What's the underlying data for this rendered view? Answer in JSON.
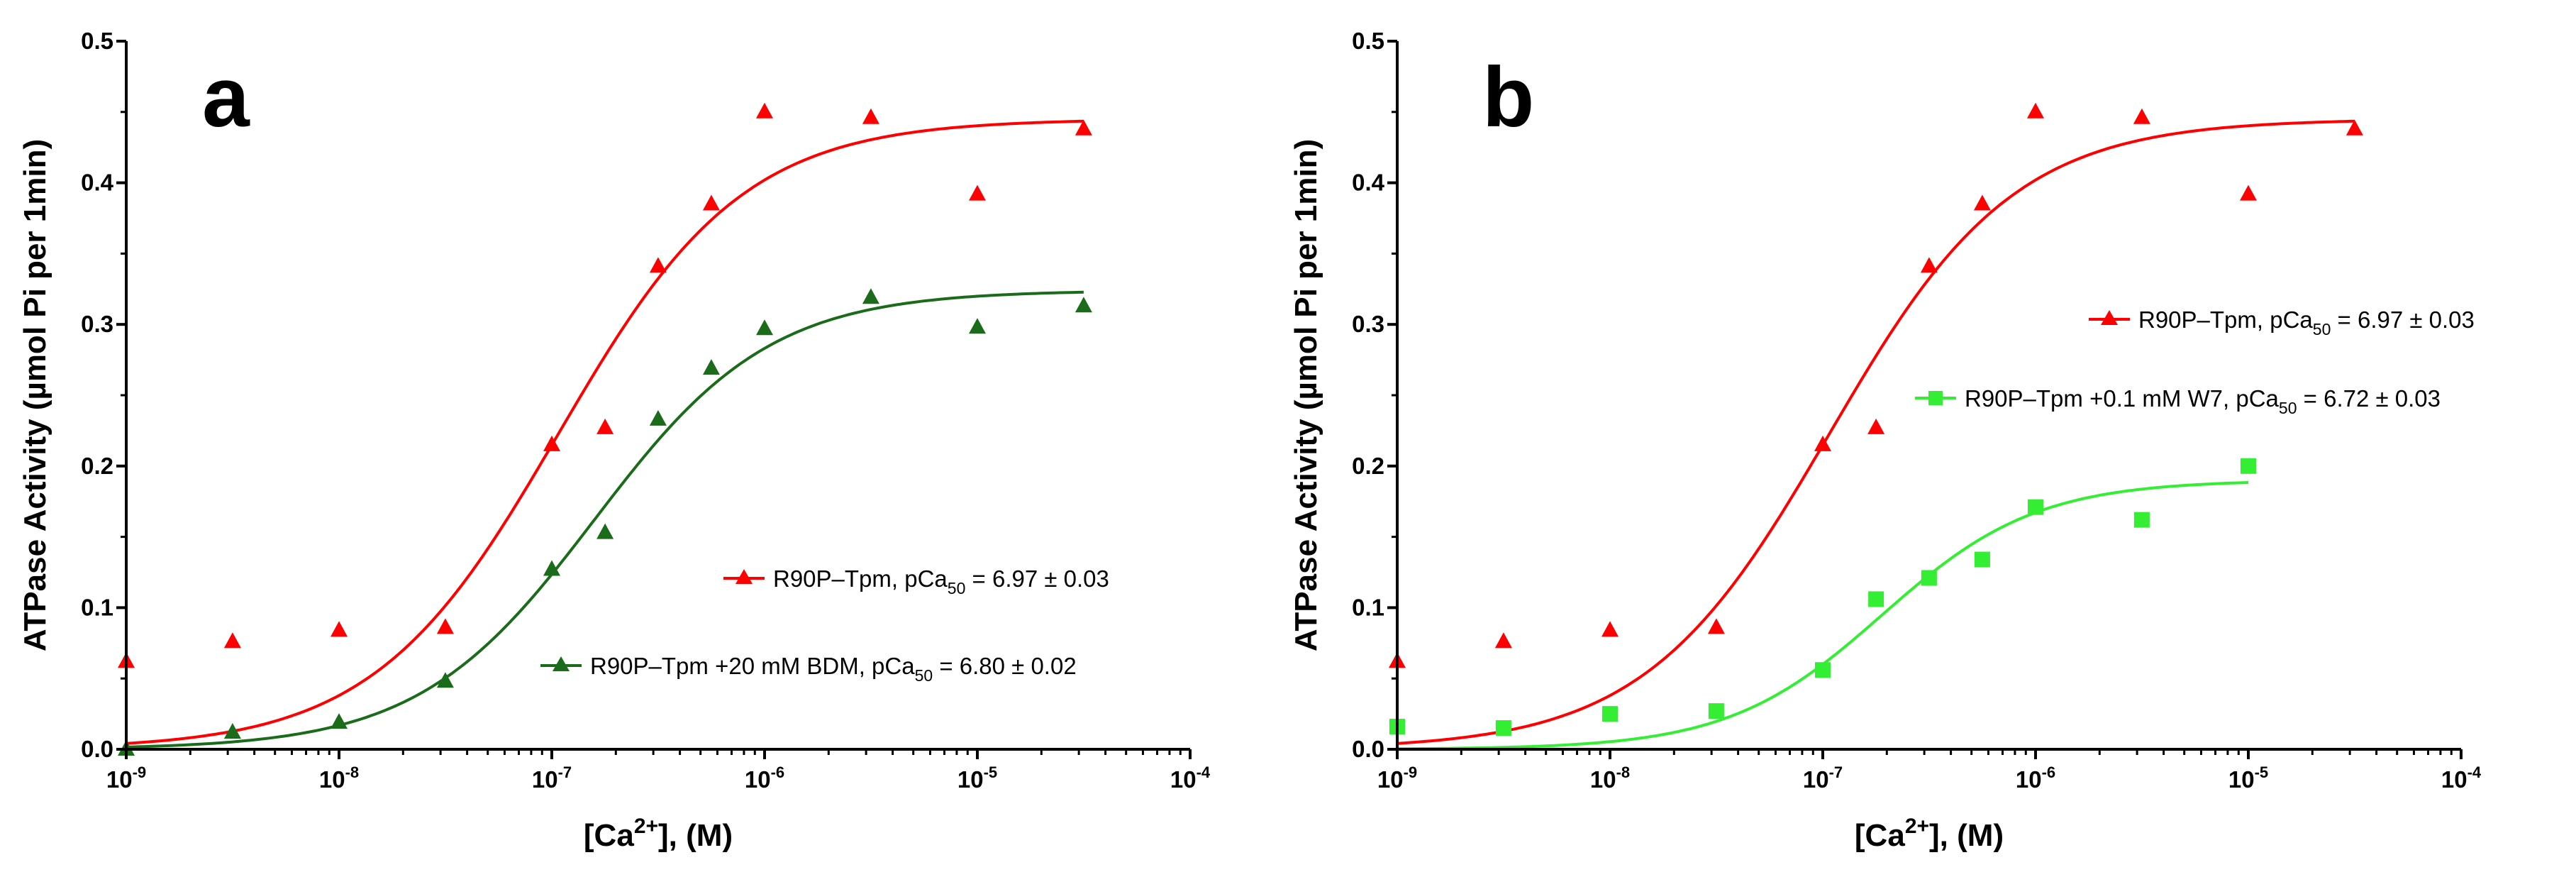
{
  "chart_data": [
    {
      "type": "scatter",
      "panel_label": "a",
      "x_scale": "log",
      "xlim": [
        1e-09,
        0.0001
      ],
      "ylim": [
        0,
        0.5
      ],
      "xlabel": "[Ca2+], (M)",
      "ylabel": "ATPase Activity (µmol Pi per 1min)",
      "x_ticks": [
        {
          "exp": "-9",
          "value": 1e-09
        },
        {
          "exp": "-8",
          "value": 1e-08
        },
        {
          "exp": "-7",
          "value": 1e-07
        },
        {
          "exp": "-6",
          "value": 1e-06
        },
        {
          "exp": "-5",
          "value": 1e-05
        },
        {
          "exp": "-4",
          "value": 0.0001
        }
      ],
      "y_ticks": [
        "0.0",
        "0.1",
        "0.2",
        "0.3",
        "0.4",
        "0.5"
      ],
      "series": [
        {
          "name": "R90P-Tpm",
          "legend_prefix": "R90P-Tpm, pCa",
          "legend_suffix": " = 6.97 ± 0.03",
          "color": "#ff0000",
          "marker": "triangle",
          "x": [
            1e-09,
            3.16e-09,
            1e-08,
            3.16e-08,
            1e-07,
            1.78e-07,
            3.16e-07,
            5.62e-07,
            1e-06,
            3.16e-06,
            1e-05,
            3.16e-05
          ],
          "y": [
            0.062,
            0.076,
            0.084,
            0.086,
            0.215,
            0.227,
            0.341,
            0.385,
            0.45,
            0.446,
            0.392,
            0.438
          ],
          "fit": {
            "bottom": 0.0,
            "top": 0.445,
            "pCa50": 6.97,
            "hill": 1.0
          }
        },
        {
          "name": "R90P-Tpm +20 mM BDM",
          "legend_prefix": "R90P-Tpm +20 mM BDM, pCa",
          "legend_suffix": " = 6.80 ± 0.02",
          "color": "#1a6b1a",
          "marker": "triangle",
          "x": [
            1e-09,
            3.16e-09,
            1e-08,
            3.16e-08,
            1e-07,
            1.78e-07,
            3.16e-07,
            5.62e-07,
            1e-06,
            3.16e-06,
            1e-05,
            3.16e-05
          ],
          "y": [
            0.0,
            0.012,
            0.019,
            0.048,
            0.127,
            0.153,
            0.233,
            0.269,
            0.297,
            0.319,
            0.298,
            0.313
          ],
          "fit": {
            "bottom": 0.0,
            "top": 0.324,
            "pCa50": 6.8,
            "hill": 1.05
          }
        }
      ],
      "legend_position": "lower-right"
    },
    {
      "type": "scatter",
      "panel_label": "b",
      "x_scale": "log",
      "xlim": [
        1e-09,
        0.0001
      ],
      "ylim": [
        0,
        0.5
      ],
      "xlabel": "[Ca2+], (M)",
      "ylabel": "ATPase Activity (µmol Pi per 1min)",
      "x_ticks": [
        {
          "exp": "-9",
          "value": 1e-09
        },
        {
          "exp": "-8",
          "value": 1e-08
        },
        {
          "exp": "-7",
          "value": 1e-07
        },
        {
          "exp": "-6",
          "value": 1e-06
        },
        {
          "exp": "-5",
          "value": 1e-05
        },
        {
          "exp": "-4",
          "value": 0.0001
        }
      ],
      "y_ticks": [
        "0.0",
        "0.1",
        "0.2",
        "0.3",
        "0.4",
        "0.5"
      ],
      "series": [
        {
          "name": "R90P-Tpm",
          "legend_prefix": "R90P-Tpm, pCa",
          "legend_suffix": " = 6.97 ± 0.03",
          "color": "#ff0000",
          "marker": "triangle",
          "x": [
            1e-09,
            3.16e-09,
            1e-08,
            3.16e-08,
            1e-07,
            1.78e-07,
            3.16e-07,
            5.62e-07,
            1e-06,
            3.16e-06,
            1e-05,
            3.16e-05
          ],
          "y": [
            0.062,
            0.076,
            0.084,
            0.086,
            0.215,
            0.227,
            0.341,
            0.385,
            0.45,
            0.446,
            0.392,
            0.438
          ],
          "fit": {
            "bottom": 0.0,
            "top": 0.445,
            "pCa50": 6.97,
            "hill": 1.0
          }
        },
        {
          "name": "R90P-Tpm +0.1 mM W7",
          "legend_prefix": "R90P-Tpm +0.1 mM W7, pCa",
          "legend_suffix": " = 6.72 ± 0.03",
          "color": "#33ee33",
          "marker": "square",
          "x": [
            1e-09,
            3.16e-09,
            1e-08,
            3.16e-08,
            1e-07,
            1.78e-07,
            3.16e-07,
            5.62e-07,
            1e-06,
            3.16e-06,
            1e-05
          ],
          "y": [
            0.016,
            0.015,
            0.025,
            0.027,
            0.056,
            0.106,
            0.121,
            0.134,
            0.171,
            0.162,
            0.2
          ],
          "fit": {
            "bottom": 0.0,
            "top": 0.19,
            "pCa50": 6.72,
            "hill": 1.2,
            "x_max": 1e-05
          }
        }
      ],
      "legend_position": "center-right"
    }
  ],
  "text": {
    "panel_a": {
      "letter": "a",
      "ylabel": "ATPase Activity (µmol Pi per 1min)",
      "xlabel_pre": "[Ca",
      "xlabel_sup": "2+",
      "xlabel_post": "], (M)",
      "legend1_prefix": "R90P–Tpm, pCa",
      "legend1_sub": "50",
      "legend1_suffix": " = 6.97 ± 0.03",
      "legend2_prefix": "R90P–Tpm +20 mM BDM, pCa",
      "legend2_sub": "50",
      "legend2_suffix": " = 6.80 ± 0.02",
      "y_ticks": [
        "0.0",
        "0.1",
        "0.2",
        "0.3",
        "0.4",
        "0.5"
      ],
      "x_tick_base": "10",
      "x_tick_exps": [
        "-9",
        "-8",
        "-7",
        "-6",
        "-5",
        "-4"
      ]
    },
    "panel_b": {
      "letter": "b",
      "ylabel": "ATPase Activity (µmol Pi per 1min)",
      "xlabel_pre": "[Ca",
      "xlabel_sup": "2+",
      "xlabel_post": "], (M)",
      "legend1_prefix": "R90P–Tpm, pCa",
      "legend1_sub": "50",
      "legend1_suffix": " = 6.97 ± 0.03",
      "legend2_prefix": "R90P–Tpm +0.1 mM W7, pCa",
      "legend2_sub": "50",
      "legend2_suffix": " = 6.72 ± 0.03",
      "y_ticks": [
        "0.0",
        "0.1",
        "0.2",
        "0.3",
        "0.4",
        "0.5"
      ],
      "x_tick_base": "10",
      "x_tick_exps": [
        "-9",
        "-8",
        "-7",
        "-6",
        "-5",
        "-4"
      ]
    }
  },
  "colors": {
    "red": "#ff0000",
    "dark_green": "#1a6b1a",
    "light_green": "#33ee33",
    "axis": "#000000"
  }
}
